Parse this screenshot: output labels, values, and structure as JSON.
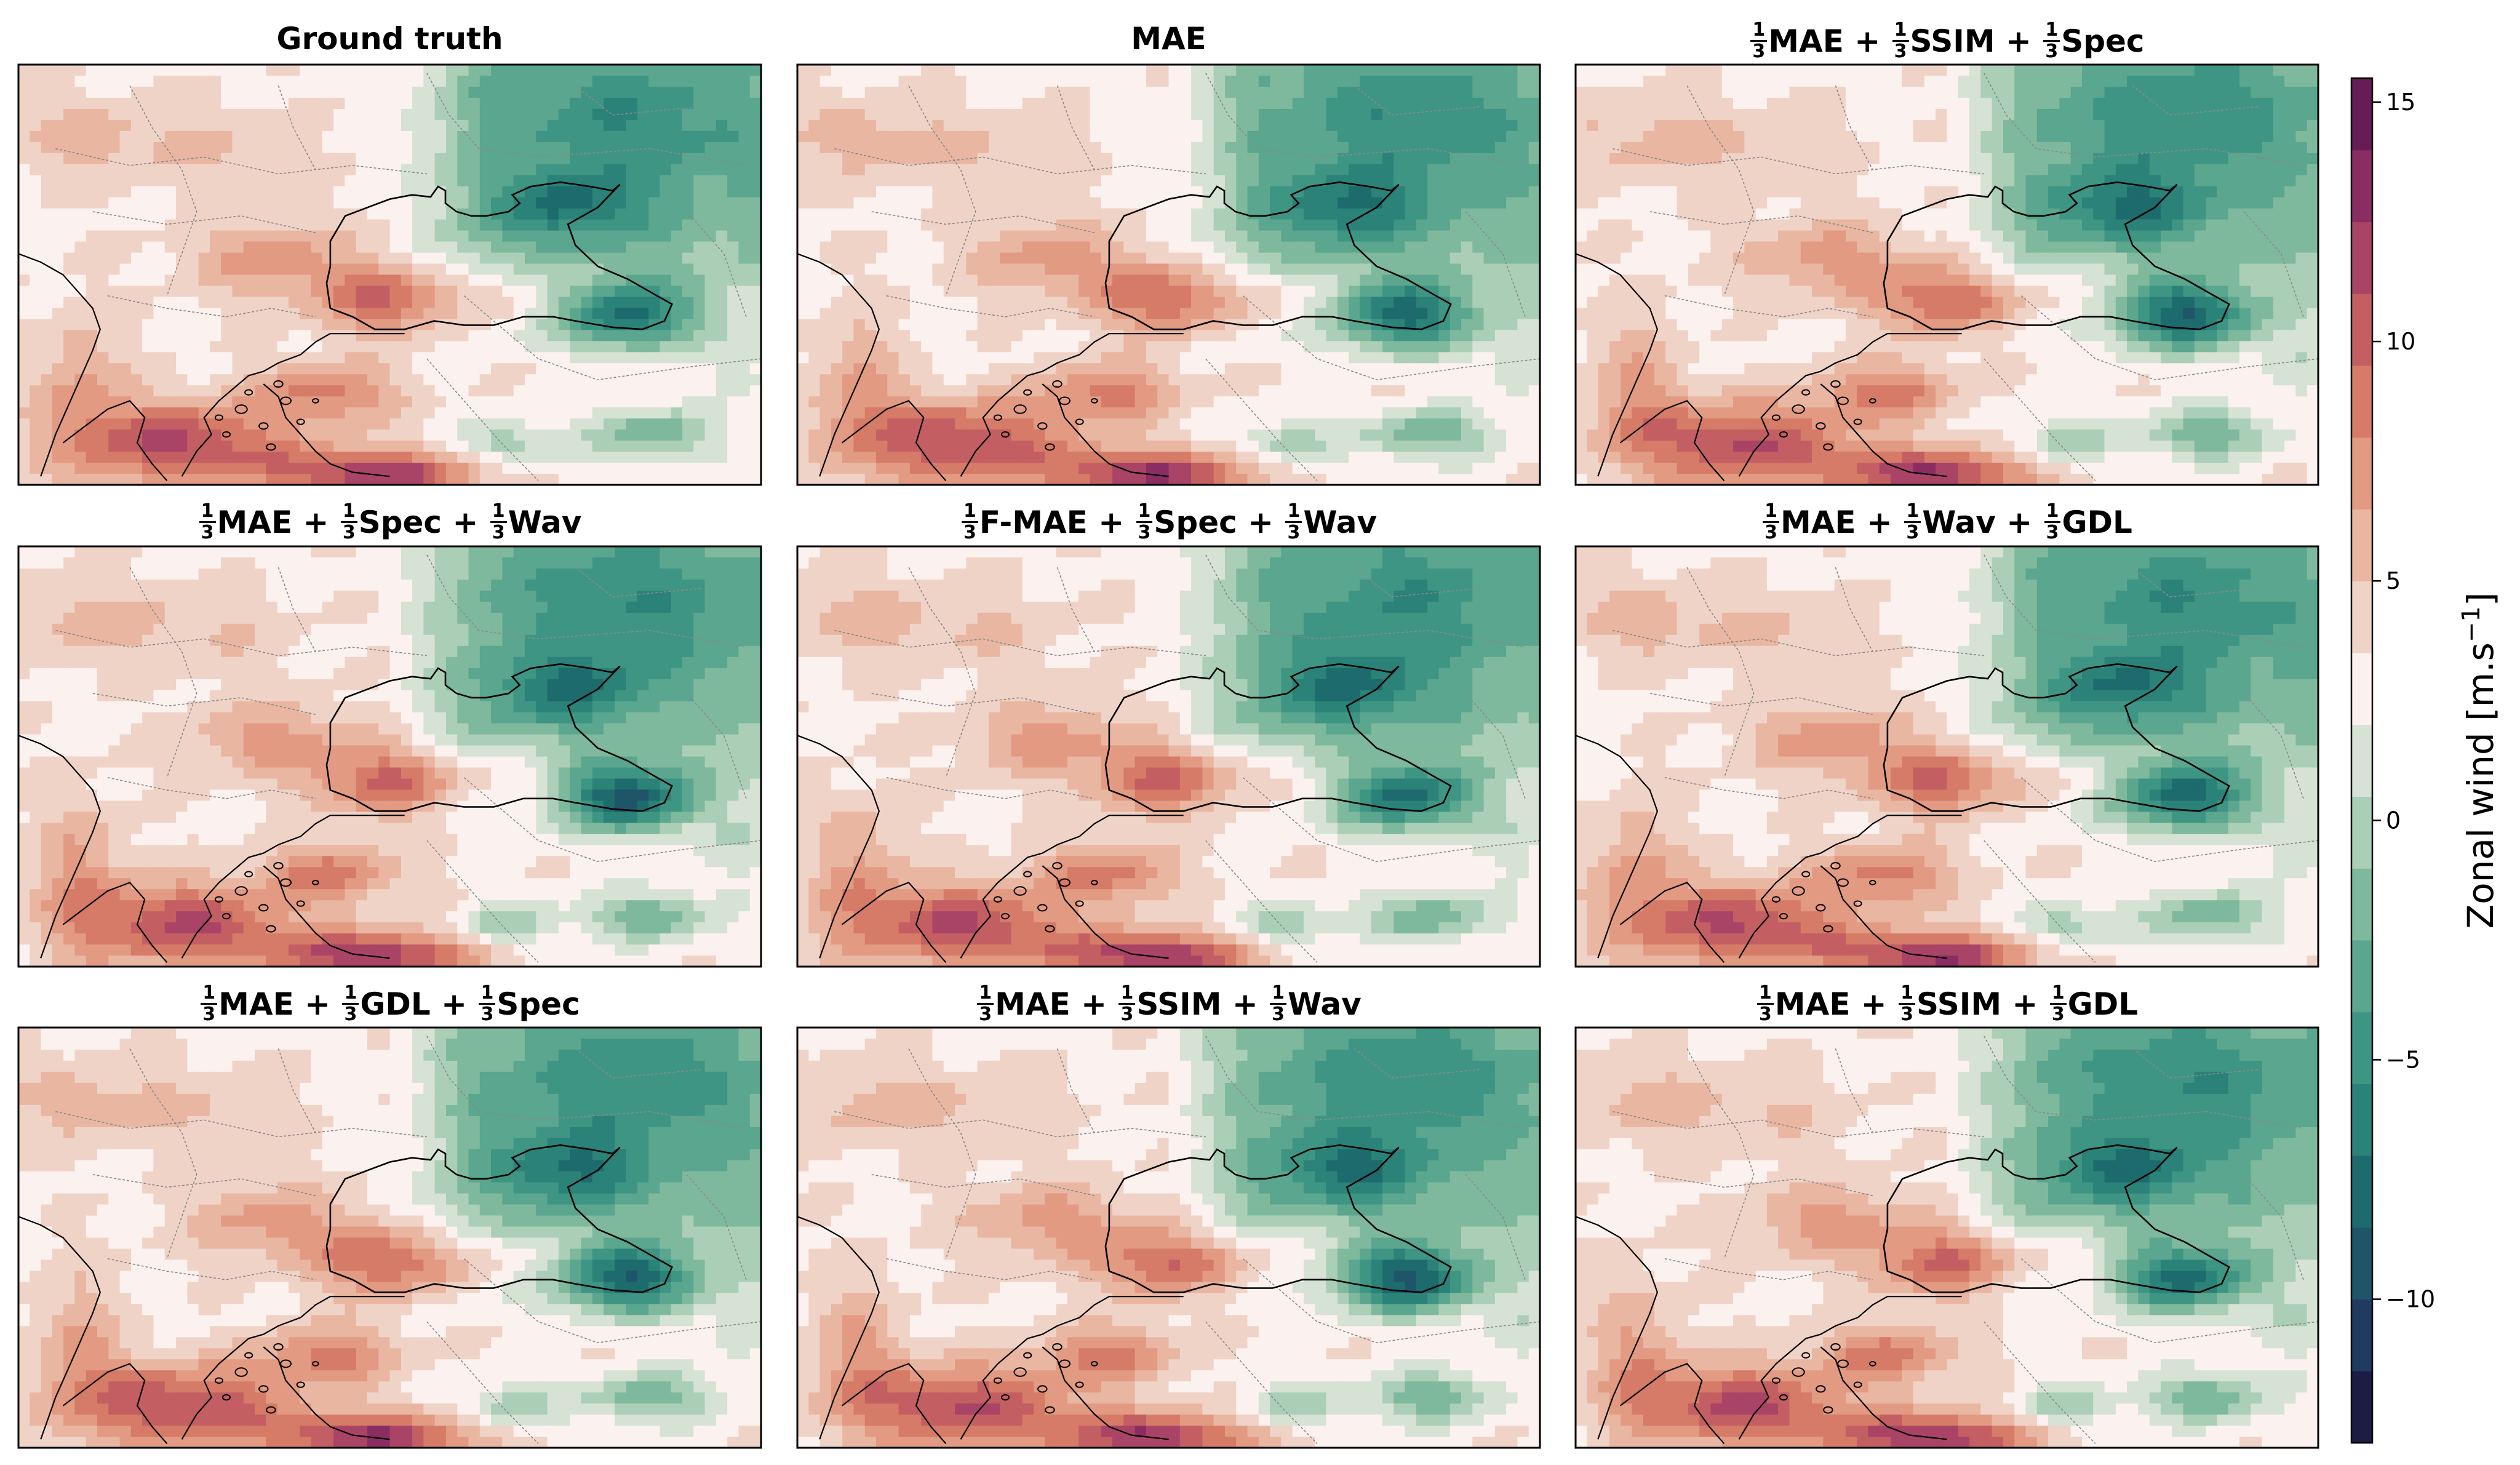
{
  "figure": {
    "panels": [
      {
        "id": "ground-truth",
        "title": [
          {
            "t": "Ground truth"
          }
        ]
      },
      {
        "id": "mae",
        "title": [
          {
            "t": "MAE"
          }
        ]
      },
      {
        "id": "mae-ssim-spec",
        "title": [
          {
            "f": [
              "1",
              "3"
            ]
          },
          {
            "t": "MAE + "
          },
          {
            "f": [
              "1",
              "3"
            ]
          },
          {
            "t": "SSIM + "
          },
          {
            "f": [
              "1",
              "3"
            ]
          },
          {
            "t": "Spec"
          }
        ]
      },
      {
        "id": "mae-spec-wav",
        "title": [
          {
            "f": [
              "1",
              "3"
            ]
          },
          {
            "t": "MAE + "
          },
          {
            "f": [
              "1",
              "3"
            ]
          },
          {
            "t": "Spec + "
          },
          {
            "f": [
              "1",
              "3"
            ]
          },
          {
            "t": "Wav"
          }
        ]
      },
      {
        "id": "fmae-spec-wav",
        "title": [
          {
            "f": [
              "1",
              "3"
            ]
          },
          {
            "t": "F-MAE + "
          },
          {
            "f": [
              "1",
              "3"
            ]
          },
          {
            "t": "Spec + "
          },
          {
            "f": [
              "1",
              "3"
            ]
          },
          {
            "t": "Wav"
          }
        ]
      },
      {
        "id": "mae-wav-gdl",
        "title": [
          {
            "f": [
              "1",
              "3"
            ]
          },
          {
            "t": "MAE + "
          },
          {
            "f": [
              "1",
              "3"
            ]
          },
          {
            "t": "Wav + "
          },
          {
            "f": [
              "1",
              "3"
            ]
          },
          {
            "t": "GDL"
          }
        ]
      },
      {
        "id": "mae-gdl-spec",
        "title": [
          {
            "f": [
              "1",
              "3"
            ]
          },
          {
            "t": "MAE + "
          },
          {
            "f": [
              "1",
              "3"
            ]
          },
          {
            "t": "GDL + "
          },
          {
            "f": [
              "1",
              "3"
            ]
          },
          {
            "t": "Spec"
          }
        ]
      },
      {
        "id": "mae-ssim-wav",
        "title": [
          {
            "f": [
              "1",
              "3"
            ]
          },
          {
            "t": "MAE + "
          },
          {
            "f": [
              "1",
              "3"
            ]
          },
          {
            "t": "SSIM + "
          },
          {
            "f": [
              "1",
              "3"
            ]
          },
          {
            "t": "Wav"
          }
        ]
      },
      {
        "id": "mae-ssim-gdl",
        "title": [
          {
            "f": [
              "1",
              "3"
            ]
          },
          {
            "t": "MAE + "
          },
          {
            "f": [
              "1",
              "3"
            ]
          },
          {
            "t": "SSIM + "
          },
          {
            "f": [
              "1",
              "3"
            ]
          },
          {
            "t": "GDL"
          }
        ]
      }
    ]
  },
  "chart_data": {
    "type": "heatmap",
    "description_of_field": "Zonal wind maps over the Black Sea / Balkans / Anatolia region, 3x3 panels",
    "colorbar": {
      "label": "Zonal wind [m.s",
      "label_superscript": "−1",
      "label_close": "]",
      "min": -13,
      "max": 15.5,
      "ticks": [
        15,
        10,
        5,
        0,
        -5,
        -10
      ],
      "tick_labels": [
        "15",
        "10",
        "5",
        "0",
        "−5",
        "−10"
      ],
      "levels": [
        -13,
        -11.5,
        -10,
        -8.5,
        -7,
        -5.5,
        -4,
        -2.5,
        -1,
        0.5,
        2,
        3.5,
        5,
        6.5,
        8,
        9.5,
        11,
        12.5,
        14,
        15.5
      ],
      "colors": [
        "#1c1c45",
        "#213a5f",
        "#1f5568",
        "#1d6b6c",
        "#2a8278",
        "#3f9583",
        "#5aa68f",
        "#7fb99d",
        "#aacfb6",
        "#d6e2d4",
        "#fbf1ee",
        "#f0d3c7",
        "#e9b6a2",
        "#e29a82",
        "#d57b67",
        "#c35f62",
        "#aa4467",
        "#8a2d63",
        "#661c54",
        "#3d1436"
      ]
    }
  }
}
